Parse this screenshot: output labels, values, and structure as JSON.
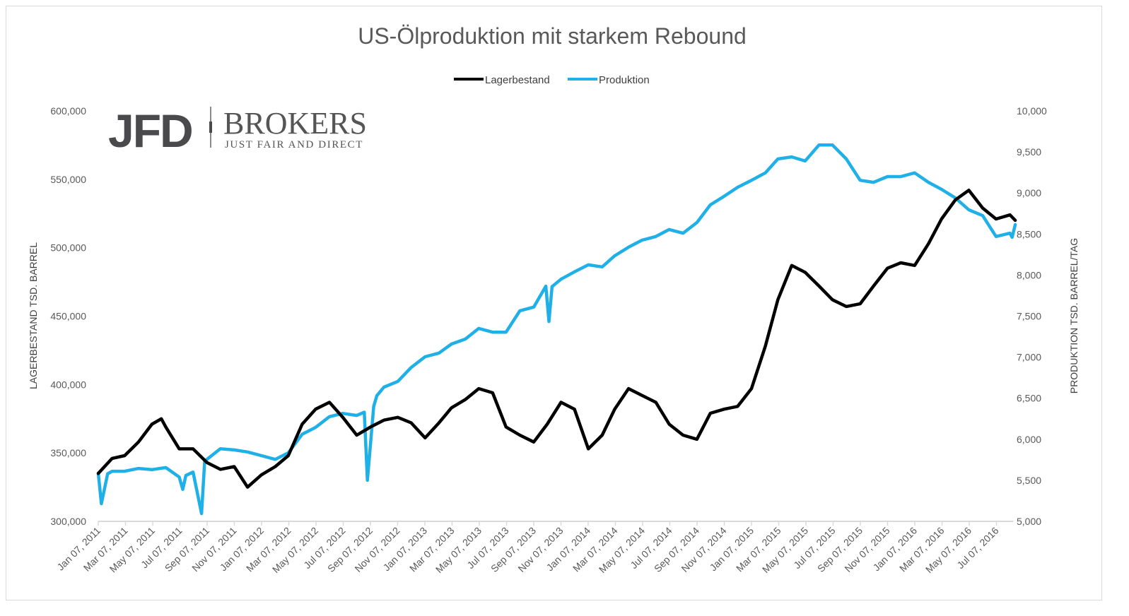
{
  "chart_data": {
    "type": "line",
    "title": "US-Ölproduktion mit starkem Rebound",
    "ylabel": "LAGERBESTAND TSD. BARREL",
    "y2label": "PRODUKTION TSD. BARREL/TAG",
    "ylim": [
      300000,
      600000
    ],
    "y2lim": [
      5000,
      10000
    ],
    "yticks": [
      "300,000",
      "350,000",
      "400,000",
      "450,000",
      "500,000",
      "550,000",
      "600,000"
    ],
    "y2ticks": [
      "5,000",
      "5,500",
      "6,000",
      "6,500",
      "7,000",
      "7,500",
      "8,000",
      "8,500",
      "9,000",
      "9,500",
      "10,000"
    ],
    "xticks": [
      "Jan 07, 2011",
      "Mar 07, 2011",
      "May 07, 2011",
      "Jul 07, 2011",
      "Sep 07, 2011",
      "Nov 07, 2011",
      "Jan 07, 2012",
      "Mar 07, 2012",
      "May 07, 2012",
      "Jul 07, 2012",
      "Sep 07, 2012",
      "Nov 07, 2012",
      "Jan 07, 2013",
      "Mar 07, 2013",
      "May 07, 2013",
      "Jul 07, 2013",
      "Sep 07, 2013",
      "Nov 07, 2013",
      "Jan 07, 2014",
      "Mar 07, 2014",
      "May 07, 2014",
      "Jul 07, 2014",
      "Sep 07, 2014",
      "Nov 07, 2014",
      "Jan 07, 2015",
      "Mar 07, 2015",
      "May 07, 2015",
      "Jul 07, 2015",
      "Sep 07, 2015",
      "Nov 07, 2015",
      "Jan 07, 2016",
      "Mar 07, 2016",
      "May 07, 2016",
      "Jul 07, 2016"
    ],
    "grid": false,
    "legend_position": "top",
    "series": [
      {
        "name": "Lagerbestand",
        "axis": "left",
        "color": "#000000",
        "points": [
          [
            "2011-01-07",
            335000
          ],
          [
            "2011-02-07",
            346000
          ],
          [
            "2011-03-07",
            348000
          ],
          [
            "2011-04-07",
            358000
          ],
          [
            "2011-05-07",
            371000
          ],
          [
            "2011-05-28",
            375000
          ],
          [
            "2011-06-07",
            369000
          ],
          [
            "2011-07-07",
            353000
          ],
          [
            "2011-08-07",
            353000
          ],
          [
            "2011-09-07",
            343000
          ],
          [
            "2011-10-07",
            338000
          ],
          [
            "2011-11-07",
            340000
          ],
          [
            "2011-12-07",
            325000
          ],
          [
            "2012-01-07",
            334000
          ],
          [
            "2012-02-07",
            340000
          ],
          [
            "2012-03-07",
            348000
          ],
          [
            "2012-04-07",
            371000
          ],
          [
            "2012-05-07",
            382000
          ],
          [
            "2012-06-07",
            387000
          ],
          [
            "2012-07-07",
            376000
          ],
          [
            "2012-08-07",
            363000
          ],
          [
            "2012-09-07",
            369000
          ],
          [
            "2012-10-07",
            374000
          ],
          [
            "2012-11-07",
            376000
          ],
          [
            "2012-12-07",
            372000
          ],
          [
            "2013-01-07",
            361000
          ],
          [
            "2013-02-07",
            372000
          ],
          [
            "2013-03-07",
            383000
          ],
          [
            "2013-04-07",
            389000
          ],
          [
            "2013-05-07",
            397000
          ],
          [
            "2013-06-07",
            394000
          ],
          [
            "2013-07-07",
            369000
          ],
          [
            "2013-08-07",
            363000
          ],
          [
            "2013-09-07",
            358000
          ],
          [
            "2013-10-07",
            371000
          ],
          [
            "2013-11-07",
            387000
          ],
          [
            "2013-12-07",
            382000
          ],
          [
            "2014-01-07",
            353000
          ],
          [
            "2014-02-07",
            363000
          ],
          [
            "2014-03-07",
            382000
          ],
          [
            "2014-04-07",
            397000
          ],
          [
            "2014-05-07",
            392000
          ],
          [
            "2014-06-07",
            387000
          ],
          [
            "2014-07-07",
            371000
          ],
          [
            "2014-08-07",
            363000
          ],
          [
            "2014-09-07",
            360000
          ],
          [
            "2014-10-07",
            379000
          ],
          [
            "2014-11-07",
            382000
          ],
          [
            "2014-12-07",
            384000
          ],
          [
            "2015-01-07",
            397000
          ],
          [
            "2015-02-07",
            428000
          ],
          [
            "2015-03-07",
            462000
          ],
          [
            "2015-04-07",
            487000
          ],
          [
            "2015-05-07",
            482000
          ],
          [
            "2015-06-07",
            472000
          ],
          [
            "2015-07-07",
            462000
          ],
          [
            "2015-08-07",
            457000
          ],
          [
            "2015-09-07",
            459000
          ],
          [
            "2015-10-07",
            472000
          ],
          [
            "2015-11-07",
            485000
          ],
          [
            "2015-12-07",
            489000
          ],
          [
            "2016-01-07",
            487000
          ],
          [
            "2016-02-07",
            503000
          ],
          [
            "2016-03-07",
            521000
          ],
          [
            "2016-04-07",
            535000
          ],
          [
            "2016-05-07",
            542000
          ],
          [
            "2016-06-07",
            529000
          ],
          [
            "2016-07-07",
            521000
          ],
          [
            "2016-08-07",
            524000
          ],
          [
            "2016-08-19",
            520000
          ]
        ]
      },
      {
        "name": "Produktion",
        "axis": "right",
        "color": "#1fb0e8",
        "points": [
          [
            "2011-01-07",
            5585
          ],
          [
            "2011-01-14",
            5215
          ],
          [
            "2011-01-28",
            5580
          ],
          [
            "2011-02-07",
            5610
          ],
          [
            "2011-03-07",
            5610
          ],
          [
            "2011-04-07",
            5645
          ],
          [
            "2011-05-07",
            5630
          ],
          [
            "2011-06-07",
            5655
          ],
          [
            "2011-07-07",
            5540
          ],
          [
            "2011-07-15",
            5390
          ],
          [
            "2011-07-22",
            5560
          ],
          [
            "2011-08-07",
            5600
          ],
          [
            "2011-08-26",
            5095
          ],
          [
            "2011-09-02",
            5730
          ],
          [
            "2011-09-07",
            5755
          ],
          [
            "2011-10-07",
            5885
          ],
          [
            "2011-11-07",
            5870
          ],
          [
            "2011-12-07",
            5845
          ],
          [
            "2012-01-07",
            5800
          ],
          [
            "2012-02-07",
            5755
          ],
          [
            "2012-03-07",
            5835
          ],
          [
            "2012-04-07",
            6060
          ],
          [
            "2012-05-07",
            6145
          ],
          [
            "2012-06-07",
            6275
          ],
          [
            "2012-07-07",
            6315
          ],
          [
            "2012-08-07",
            6290
          ],
          [
            "2012-08-24",
            6330
          ],
          [
            "2012-08-31",
            5500
          ],
          [
            "2012-09-14",
            6400
          ],
          [
            "2012-09-21",
            6530
          ],
          [
            "2012-10-07",
            6635
          ],
          [
            "2012-11-07",
            6705
          ],
          [
            "2012-12-07",
            6875
          ],
          [
            "2013-01-07",
            7005
          ],
          [
            "2013-02-07",
            7050
          ],
          [
            "2013-03-07",
            7160
          ],
          [
            "2013-04-07",
            7220
          ],
          [
            "2013-05-07",
            7350
          ],
          [
            "2013-06-07",
            7305
          ],
          [
            "2013-07-07",
            7305
          ],
          [
            "2013-08-07",
            7565
          ],
          [
            "2013-09-07",
            7610
          ],
          [
            "2013-10-04",
            7865
          ],
          [
            "2013-10-11",
            7435
          ],
          [
            "2013-10-18",
            7860
          ],
          [
            "2013-11-07",
            7950
          ],
          [
            "2013-12-07",
            8040
          ],
          [
            "2014-01-07",
            8125
          ],
          [
            "2014-02-07",
            8100
          ],
          [
            "2014-03-07",
            8235
          ],
          [
            "2014-04-07",
            8340
          ],
          [
            "2014-05-07",
            8425
          ],
          [
            "2014-06-07",
            8470
          ],
          [
            "2014-07-07",
            8555
          ],
          [
            "2014-08-07",
            8510
          ],
          [
            "2014-09-07",
            8640
          ],
          [
            "2014-10-07",
            8855
          ],
          [
            "2014-11-07",
            8960
          ],
          [
            "2014-12-07",
            9070
          ],
          [
            "2015-01-07",
            9155
          ],
          [
            "2015-02-07",
            9245
          ],
          [
            "2015-03-07",
            9415
          ],
          [
            "2015-04-07",
            9440
          ],
          [
            "2015-05-07",
            9390
          ],
          [
            "2015-06-07",
            9585
          ],
          [
            "2015-07-07",
            9585
          ],
          [
            "2015-08-07",
            9415
          ],
          [
            "2015-09-07",
            9155
          ],
          [
            "2015-10-07",
            9130
          ],
          [
            "2015-11-07",
            9200
          ],
          [
            "2015-12-07",
            9200
          ],
          [
            "2016-01-07",
            9245
          ],
          [
            "2016-02-07",
            9130
          ],
          [
            "2016-03-07",
            9045
          ],
          [
            "2016-04-07",
            8940
          ],
          [
            "2016-05-07",
            8795
          ],
          [
            "2016-06-07",
            8725
          ],
          [
            "2016-07-07",
            8470
          ],
          [
            "2016-08-07",
            8510
          ],
          [
            "2016-08-12",
            8460
          ],
          [
            "2016-08-19",
            8615
          ]
        ]
      }
    ]
  },
  "logo": {
    "text": "JFD BROKERS",
    "tagline": "JUST FAIR AND DIRECT"
  }
}
